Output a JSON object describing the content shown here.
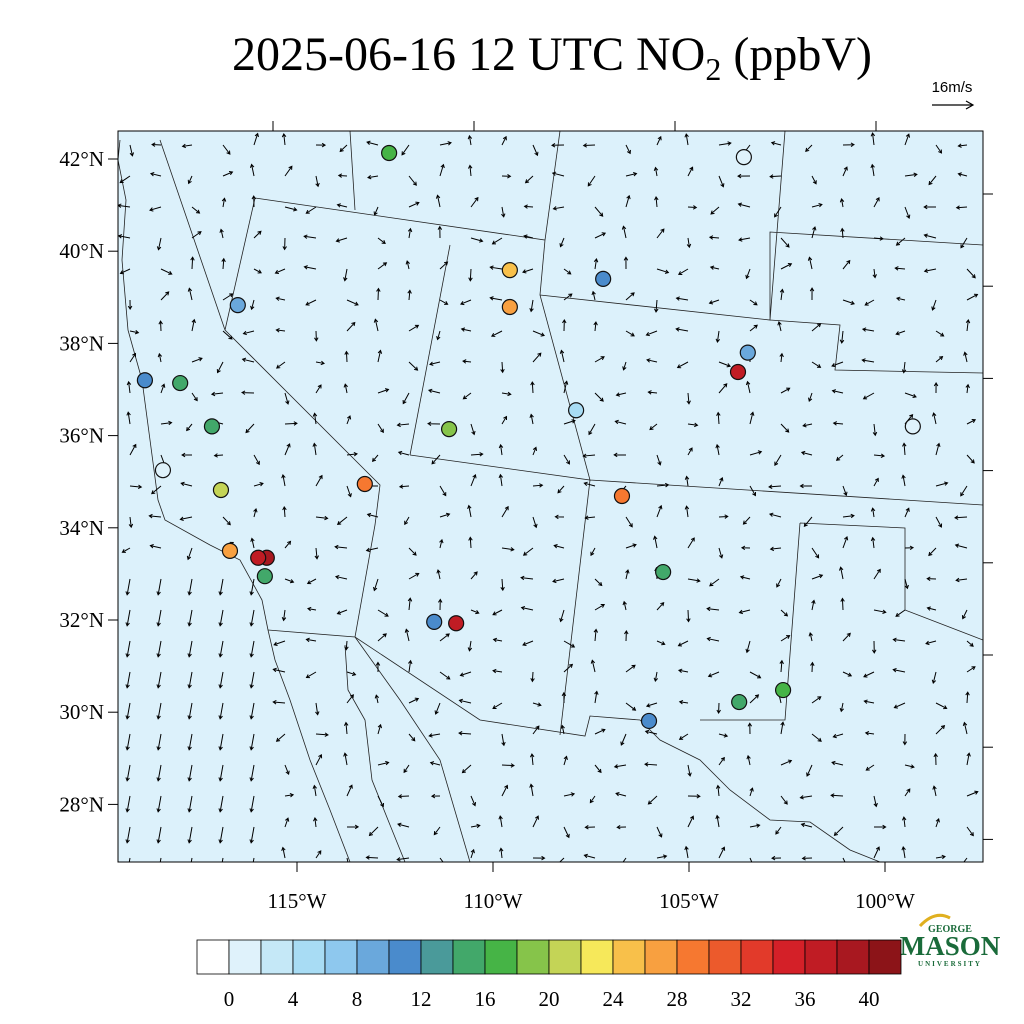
{
  "map": {
    "title": "2025-06-16 12 UTC NO",
    "title_sub": "2",
    "title_unit": "(ppbV)",
    "vector_label": "16m/s",
    "lat_ticks": [
      {
        "value": 42,
        "label": "42°N"
      },
      {
        "value": 40,
        "label": "40°N"
      },
      {
        "value": 38,
        "label": "38°N"
      },
      {
        "value": 36,
        "label": "36°N"
      },
      {
        "value": 34,
        "label": "34°N"
      },
      {
        "value": 32,
        "label": "32°N"
      },
      {
        "value": 30,
        "label": "30°N"
      },
      {
        "value": 28,
        "label": "28°N"
      }
    ],
    "lon_ticks": [
      {
        "value": -115,
        "label": "115°W"
      },
      {
        "value": -110,
        "label": "110°W"
      },
      {
        "value": -105,
        "label": "105°W"
      },
      {
        "value": -100,
        "label": "100°W"
      }
    ],
    "colorbar": {
      "colors": [
        "#ffffff",
        "#dff2fb",
        "#c5e8f7",
        "#a8dcf4",
        "#8ec8ee",
        "#6aa8dc",
        "#4a8bcc",
        "#4a9a9a",
        "#42a86a",
        "#46b446",
        "#86c44a",
        "#c4d456",
        "#f6e85a",
        "#f8c04a",
        "#f8a040",
        "#f67830",
        "#ec5a2c",
        "#e23a2a",
        "#d42028",
        "#c01c24",
        "#a81820",
        "#8c1418"
      ],
      "levels": [
        0,
        2,
        4,
        6,
        8,
        10,
        12,
        14,
        16,
        18,
        20,
        22,
        24,
        26,
        28,
        30,
        32,
        34,
        36,
        38,
        40
      ],
      "ticks": [
        0,
        4,
        8,
        12,
        16,
        20,
        24,
        28,
        32,
        36,
        40
      ]
    },
    "stations": [
      {
        "lon": -112.65,
        "lat": 42.13,
        "value": 17
      },
      {
        "lon": -115.77,
        "lat": 33.35,
        "value": 38
      },
      {
        "lon": -115.99,
        "lat": 33.35,
        "value": 36
      },
      {
        "lon": -116.71,
        "lat": 33.5,
        "value": 27
      },
      {
        "lon": -116.94,
        "lat": 34.82,
        "value": 21
      },
      {
        "lon": -113.27,
        "lat": 34.95,
        "value": 28
      },
      {
        "lon": -110.94,
        "lat": 31.93,
        "value": 36
      },
      {
        "lon": -111.5,
        "lat": 31.96,
        "value": 11
      },
      {
        "lon": -103.75,
        "lat": 37.38,
        "value": 37
      },
      {
        "lon": -106.71,
        "lat": 34.69,
        "value": 28
      },
      {
        "lon": -105.66,
        "lat": 33.04,
        "value": 15
      },
      {
        "lon": -102.6,
        "lat": 30.48,
        "value": 17
      },
      {
        "lon": -103.72,
        "lat": 30.22,
        "value": 14
      },
      {
        "lon": -106.02,
        "lat": 29.81,
        "value": 11
      },
      {
        "lon": -109.57,
        "lat": 39.59,
        "value": 24
      },
      {
        "lon": -109.57,
        "lat": 38.79,
        "value": 26
      },
      {
        "lon": -111.12,
        "lat": 36.14,
        "value": 19
      },
      {
        "lon": -117.17,
        "lat": 36.2,
        "value": 14
      },
      {
        "lon": -117.98,
        "lat": 37.14,
        "value": 14
      },
      {
        "lon": -118.88,
        "lat": 37.2,
        "value": 10
      },
      {
        "lon": -107.19,
        "lat": 39.4,
        "value": 10
      },
      {
        "lon": -116.51,
        "lat": 38.83,
        "value": 8
      },
      {
        "lon": -103.6,
        "lat": 42.04,
        "value": 1
      },
      {
        "lon": -99.29,
        "lat": 36.2,
        "value": 1
      },
      {
        "lon": -115.82,
        "lat": 32.95,
        "value": 14
      },
      {
        "lon": -103.5,
        "lat": 37.8,
        "value": 8
      },
      {
        "lon": -107.88,
        "lat": 36.55,
        "value": 5
      },
      {
        "lon": -118.42,
        "lat": 35.25,
        "value": 1
      }
    ],
    "logo": {
      "top": "GEORGE",
      "main": "MASON",
      "bottom": "UNIVERSITY"
    }
  }
}
